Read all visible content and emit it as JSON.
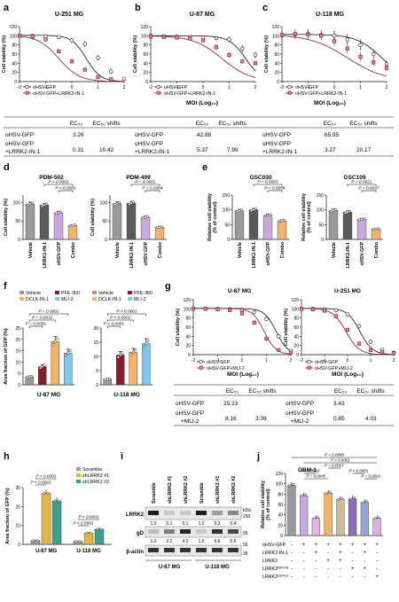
{
  "figure": {
    "panel_letters": [
      "a",
      "b",
      "c",
      "d",
      "e",
      "f",
      "g",
      "h",
      "i",
      "j"
    ],
    "cell_viability_label": "Cell viability (%)",
    "moi_label": "MOI (Log₁₀)",
    "ec50_header": "EC₅₀",
    "ec50_shift_header": "EC₅₀ shifts"
  },
  "panel_a": {
    "title": "U-251 MG",
    "legend": [
      "oHSV-GFP",
      "oHSV-GFP+LRRK2-IN-1"
    ],
    "table": [
      {
        "label": "oHSV-GFP",
        "ec50": "3.26",
        "shift": ""
      },
      {
        "label": "oHSV-GFP\n+LRRK2-IN-1",
        "ec50": "0.31",
        "shift": "10.42"
      }
    ]
  },
  "panel_b": {
    "title": "U-87 MG",
    "legend": [
      "oHSV-GFP",
      "oHSV-GFP+LRRK2-IN-1"
    ],
    "table": [
      {
        "label": "oHSV-GFP",
        "ec50": "42.88",
        "shift": ""
      },
      {
        "label": "oHSV-GFP\n+LRRK2-IN-1",
        "ec50": "5.37",
        "shift": "7.99"
      }
    ]
  },
  "panel_c": {
    "title": "U-118 MG",
    "legend": [
      "oHSV-GFP",
      "oHSV-GFP+LRRK2-IN-1"
    ],
    "table": [
      {
        "label": "oHSV-GFP",
        "ec50": "65.95",
        "shift": ""
      },
      {
        "label": "oHSV-GFP\n+LRRK2-IN-1",
        "ec50": "3.27",
        "shift": "20.17"
      }
    ]
  },
  "panel_d": {
    "charts": [
      {
        "title": "PDM-502",
        "values": [
          96,
          93,
          72,
          38
        ],
        "pvals": [
          "P < 0.0001",
          "P < 0.0001"
        ]
      },
      {
        "title": "PDM-499",
        "values": [
          97,
          98,
          60,
          33
        ],
        "pvals": [
          "P = 0.0001",
          "P = 0.0004"
        ]
      }
    ],
    "categories": [
      "Vehicle",
      "LRRK2-IN-1",
      "oHSV-GFP",
      "Combo"
    ]
  },
  "panel_e": {
    "ylabel": "Relative cell viability (% of control)",
    "charts": [
      {
        "title": "GSC030",
        "values": [
          97,
          100,
          82,
          63
        ],
        "pvals": [
          "P = 0.0003",
          "P = 0.0058"
        ]
      },
      {
        "title": "GSC109",
        "values": [
          98,
          92,
          68,
          35
        ],
        "pvals": [
          "P = 0.0021",
          "P = 0.0037"
        ]
      }
    ],
    "categories": [
      "Vehicle",
      "LRRK2-IN-1",
      "oHSV-GFP",
      "Combo"
    ]
  },
  "panel_f": {
    "ylabel": "Area fraction of GFP (%)",
    "legend_left": [
      "Vehicle",
      "PFE-360",
      "DCLK-IN-1",
      "MLI-2"
    ],
    "charts": [
      {
        "title": "U-87 MG",
        "values": [
          3.5,
          8,
          19,
          14
        ],
        "pvals": [
          "P = 0.0001",
          "P = 0.0032",
          "P = 0.0001"
        ]
      },
      {
        "title": "U-118 MG",
        "values": [
          2,
          10.5,
          11.5,
          14.5
        ],
        "pvals": [
          "P < 0.0001",
          "P < 0.0001",
          "P < 0.0001"
        ]
      }
    ]
  },
  "panel_g": {
    "charts": [
      {
        "title": "U-87 MG",
        "legend": [
          "oHSV-GFP",
          "oHSV-GFP+MLI-2"
        ]
      },
      {
        "title": "U-251 MG",
        "legend": [
          "oHSV-GFP",
          "oHSV-GFP+MLI-2"
        ]
      }
    ],
    "tables": [
      [
        {
          "label": "oHSV-GFP",
          "ec50": "25.23",
          "shift": ""
        },
        {
          "label": "oHSV-GFP\n+MLI-2",
          "ec50": "8.16",
          "shift": "3.09"
        }
      ],
      [
        {
          "label": "oHSV-GFP",
          "ec50": "3.43",
          "shift": ""
        },
        {
          "label": "oHSV-GFP\n+MLI-2",
          "ec50": "0.85",
          "shift": "4.03"
        }
      ]
    ]
  },
  "panel_h": {
    "ylabel": "Area fraction of GFP (%)",
    "legend": [
      "Scramble",
      "shLRRK2 #1",
      "shLRRK2 #2"
    ],
    "groups": [
      "U-87 MG",
      "U-118 MG"
    ],
    "values": [
      [
        2,
        27,
        23
      ],
      [
        1.5,
        6,
        8
      ]
    ],
    "pvals": [
      "P < 0.0001",
      "P < 0.0001",
      "P < 0.0001",
      "P < 0.0001"
    ]
  },
  "panel_i": {
    "lanes": [
      "Scramble",
      "shLRRK2 #1",
      "shLRRK2 #2",
      "Scramble",
      "shLRRK2 #1",
      "shLRRK2 #2"
    ],
    "rows": [
      "LRRK2",
      "gD",
      "β-actin"
    ],
    "lrrk2_quant": [
      "1.0",
      "0.1",
      "0.1",
      "1.0",
      "0.3",
      "0.4"
    ],
    "gd_quant": [
      "1.0",
      "2.2",
      "4.0",
      "1.0",
      "6.6",
      "5.6"
    ],
    "kda": [
      "250",
      "55",
      "55",
      "35"
    ],
    "kda_label": "kDa",
    "groups": [
      "U-87 MG",
      "U-118 MG"
    ]
  },
  "panel_j": {
    "title": "GBM-1",
    "ylabel": "Relative cell viability (% of control)",
    "values": [
      97,
      77,
      33,
      82,
      70,
      71,
      64,
      33
    ],
    "pvals": [
      "P = 0.0089",
      "P < 0.0001",
      "P = 0.0057",
      "P = 0.0002",
      "P = 0.0045",
      "P < 0.0001",
      "P = 0.0001"
    ],
    "row_labels": [
      "oHSV-GFP",
      "LRRK2-IN-1",
      "LRRK2",
      "LRRK2ᴰ²⁰¹⁷ᴬ",
      "LRRK2ᴳ²⁰¹⁹ˢ"
    ],
    "row_signs": [
      [
        "-",
        "+",
        "+",
        "+",
        "+",
        "+",
        "+",
        "+"
      ],
      [
        "-",
        "-",
        "+",
        "-",
        "+",
        "-",
        "+",
        "-"
      ],
      [
        "-",
        "-",
        "-",
        "+",
        "+",
        "-",
        "-",
        "-"
      ],
      [
        "-",
        "-",
        "-",
        "-",
        "-",
        "+",
        "+",
        "-"
      ],
      [
        "-",
        "-",
        "-",
        "-",
        "-",
        "-",
        "-",
        "+"
      ]
    ]
  },
  "colors": {
    "gray": "#9a9a9a",
    "dark_gray": "#5a5a5a",
    "lavender": "#c9a9e0",
    "orange": "#f5b26b",
    "red_dark": "#8b1a2b",
    "sky": "#7ec8ef",
    "yellow": "#e7b63f",
    "teal": "#3f9e8e",
    "maroon": "#8b1a2b",
    "purple": "#8e6bbf"
  }
}
